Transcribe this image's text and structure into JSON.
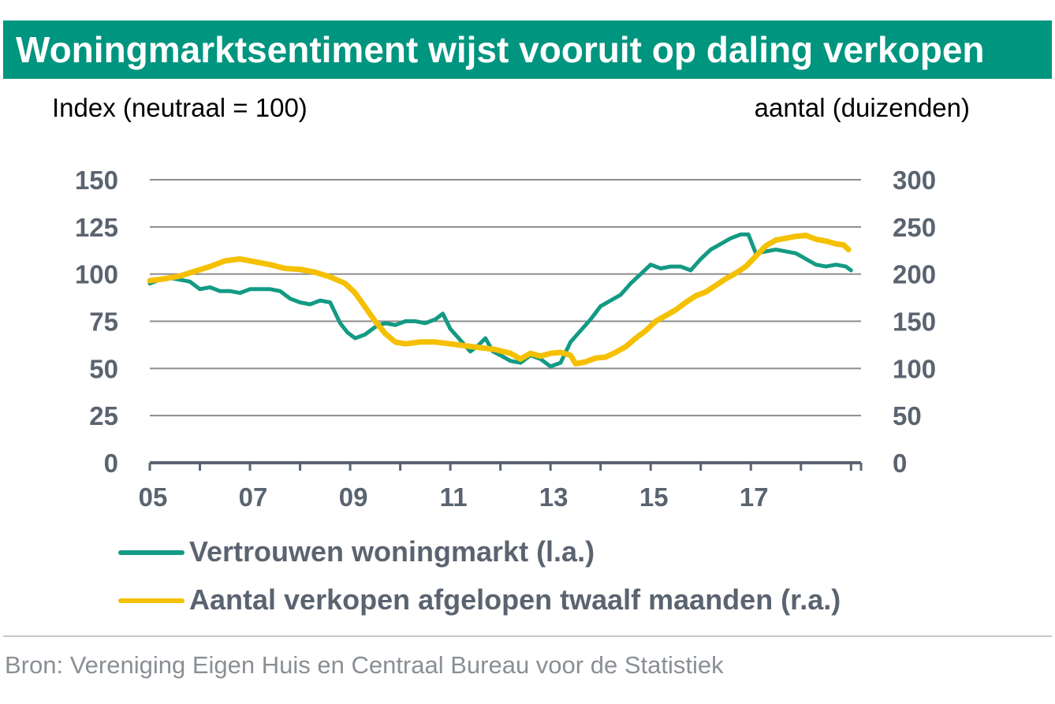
{
  "header": {
    "title": "Woningmarktsentiment wijst vooruit op daling verkopen"
  },
  "footer": {
    "source": "Bron: Vereniging Eigen Huis en Centraal Bureau voor de Statistiek"
  },
  "colors": {
    "title_bg": "#00957f",
    "series_vertrouwen": "#139a84",
    "series_verkopen": "#f5c000",
    "grid": "#8c8c8c",
    "tick_text": "#5a6470"
  },
  "chart_data": {
    "type": "line",
    "left_axis_label": "Index (neutraal = 100)",
    "right_axis_label": "aantal (duizenden)",
    "left_ylim": [
      0,
      150
    ],
    "right_ylim": [
      0,
      300
    ],
    "left_ticks": [
      "0",
      "25",
      "50",
      "75",
      "100",
      "125",
      "150"
    ],
    "right_ticks": [
      "0",
      "50",
      "100",
      "150",
      "200",
      "250",
      "300"
    ],
    "xlim": [
      2005,
      2019.2
    ],
    "x_ticks": [
      "05",
      "07",
      "09",
      "11",
      "13",
      "15",
      "17"
    ],
    "grid": true,
    "legend_placement": "bottom",
    "series": [
      {
        "name": "Vertrouwen woningmarkt (l.a.)",
        "axis": "left",
        "x": [
          2005.0,
          2005.2,
          2005.4,
          2005.6,
          2005.8,
          2006.0,
          2006.2,
          2006.4,
          2006.6,
          2006.8,
          2007.0,
          2007.2,
          2007.4,
          2007.6,
          2007.8,
          2008.0,
          2008.2,
          2008.4,
          2008.6,
          2008.8,
          2008.95,
          2009.1,
          2009.3,
          2009.5,
          2009.7,
          2009.9,
          2010.1,
          2010.3,
          2010.5,
          2010.7,
          2010.85,
          2011.0,
          2011.2,
          2011.4,
          2011.55,
          2011.7,
          2011.85,
          2012.0,
          2012.2,
          2012.4,
          2012.6,
          2012.8,
          2013.0,
          2013.2,
          2013.4,
          2013.6,
          2013.8,
          2014.0,
          2014.2,
          2014.4,
          2014.6,
          2014.8,
          2015.0,
          2015.2,
          2015.4,
          2015.6,
          2015.8,
          2016.0,
          2016.2,
          2016.4,
          2016.6,
          2016.8,
          2016.95,
          2017.1,
          2017.3,
          2017.5,
          2017.7,
          2017.9,
          2018.1,
          2018.3,
          2018.5,
          2018.7,
          2018.9,
          2019.0
        ],
        "values": [
          95,
          97,
          98,
          97,
          96,
          92,
          93,
          91,
          91,
          90,
          92,
          92,
          92,
          91,
          87,
          85,
          84,
          86,
          85,
          74,
          69,
          66,
          68,
          72,
          74,
          73,
          75,
          75,
          74,
          76,
          79,
          71,
          65,
          59,
          62,
          66,
          59,
          57,
          54,
          53,
          57,
          55,
          51,
          53,
          64,
          70,
          76,
          83,
          86,
          89,
          95,
          100,
          105,
          103,
          104,
          104,
          102,
          108,
          113,
          116,
          119,
          121,
          121,
          111,
          112,
          113,
          112,
          111,
          108,
          105,
          104,
          105,
          104,
          102
        ]
      },
      {
        "name": "Aantal verkopen afgelopen twaalf maanden (r.a.)",
        "axis": "right",
        "x": [
          2005.0,
          2005.3,
          2005.6,
          2005.9,
          2006.2,
          2006.5,
          2006.8,
          2007.1,
          2007.4,
          2007.7,
          2008.0,
          2008.3,
          2008.6,
          2008.9,
          2009.1,
          2009.3,
          2009.5,
          2009.7,
          2009.9,
          2010.1,
          2010.4,
          2010.7,
          2011.0,
          2011.3,
          2011.6,
          2011.9,
          2012.2,
          2012.4,
          2012.6,
          2012.8,
          2013.0,
          2013.2,
          2013.4,
          2013.5,
          2013.7,
          2013.9,
          2014.1,
          2014.3,
          2014.5,
          2014.7,
          2014.9,
          2015.1,
          2015.3,
          2015.5,
          2015.7,
          2015.9,
          2016.1,
          2016.3,
          2016.5,
          2016.7,
          2016.9,
          2017.1,
          2017.3,
          2017.5,
          2017.7,
          2017.9,
          2018.1,
          2018.3,
          2018.5,
          2018.7,
          2018.85,
          2018.95
        ],
        "values": [
          193,
          195,
          198,
          203,
          208,
          214,
          216,
          213,
          210,
          206,
          205,
          202,
          197,
          190,
          180,
          165,
          150,
          137,
          128,
          126,
          128,
          128,
          126,
          124,
          122,
          120,
          116,
          110,
          116,
          113,
          116,
          117,
          114,
          105,
          107,
          111,
          112,
          117,
          123,
          132,
          140,
          150,
          156,
          162,
          170,
          177,
          181,
          188,
          195,
          201,
          208,
          219,
          230,
          236,
          238,
          240,
          241,
          237,
          235,
          232,
          231,
          226
        ]
      }
    ]
  }
}
